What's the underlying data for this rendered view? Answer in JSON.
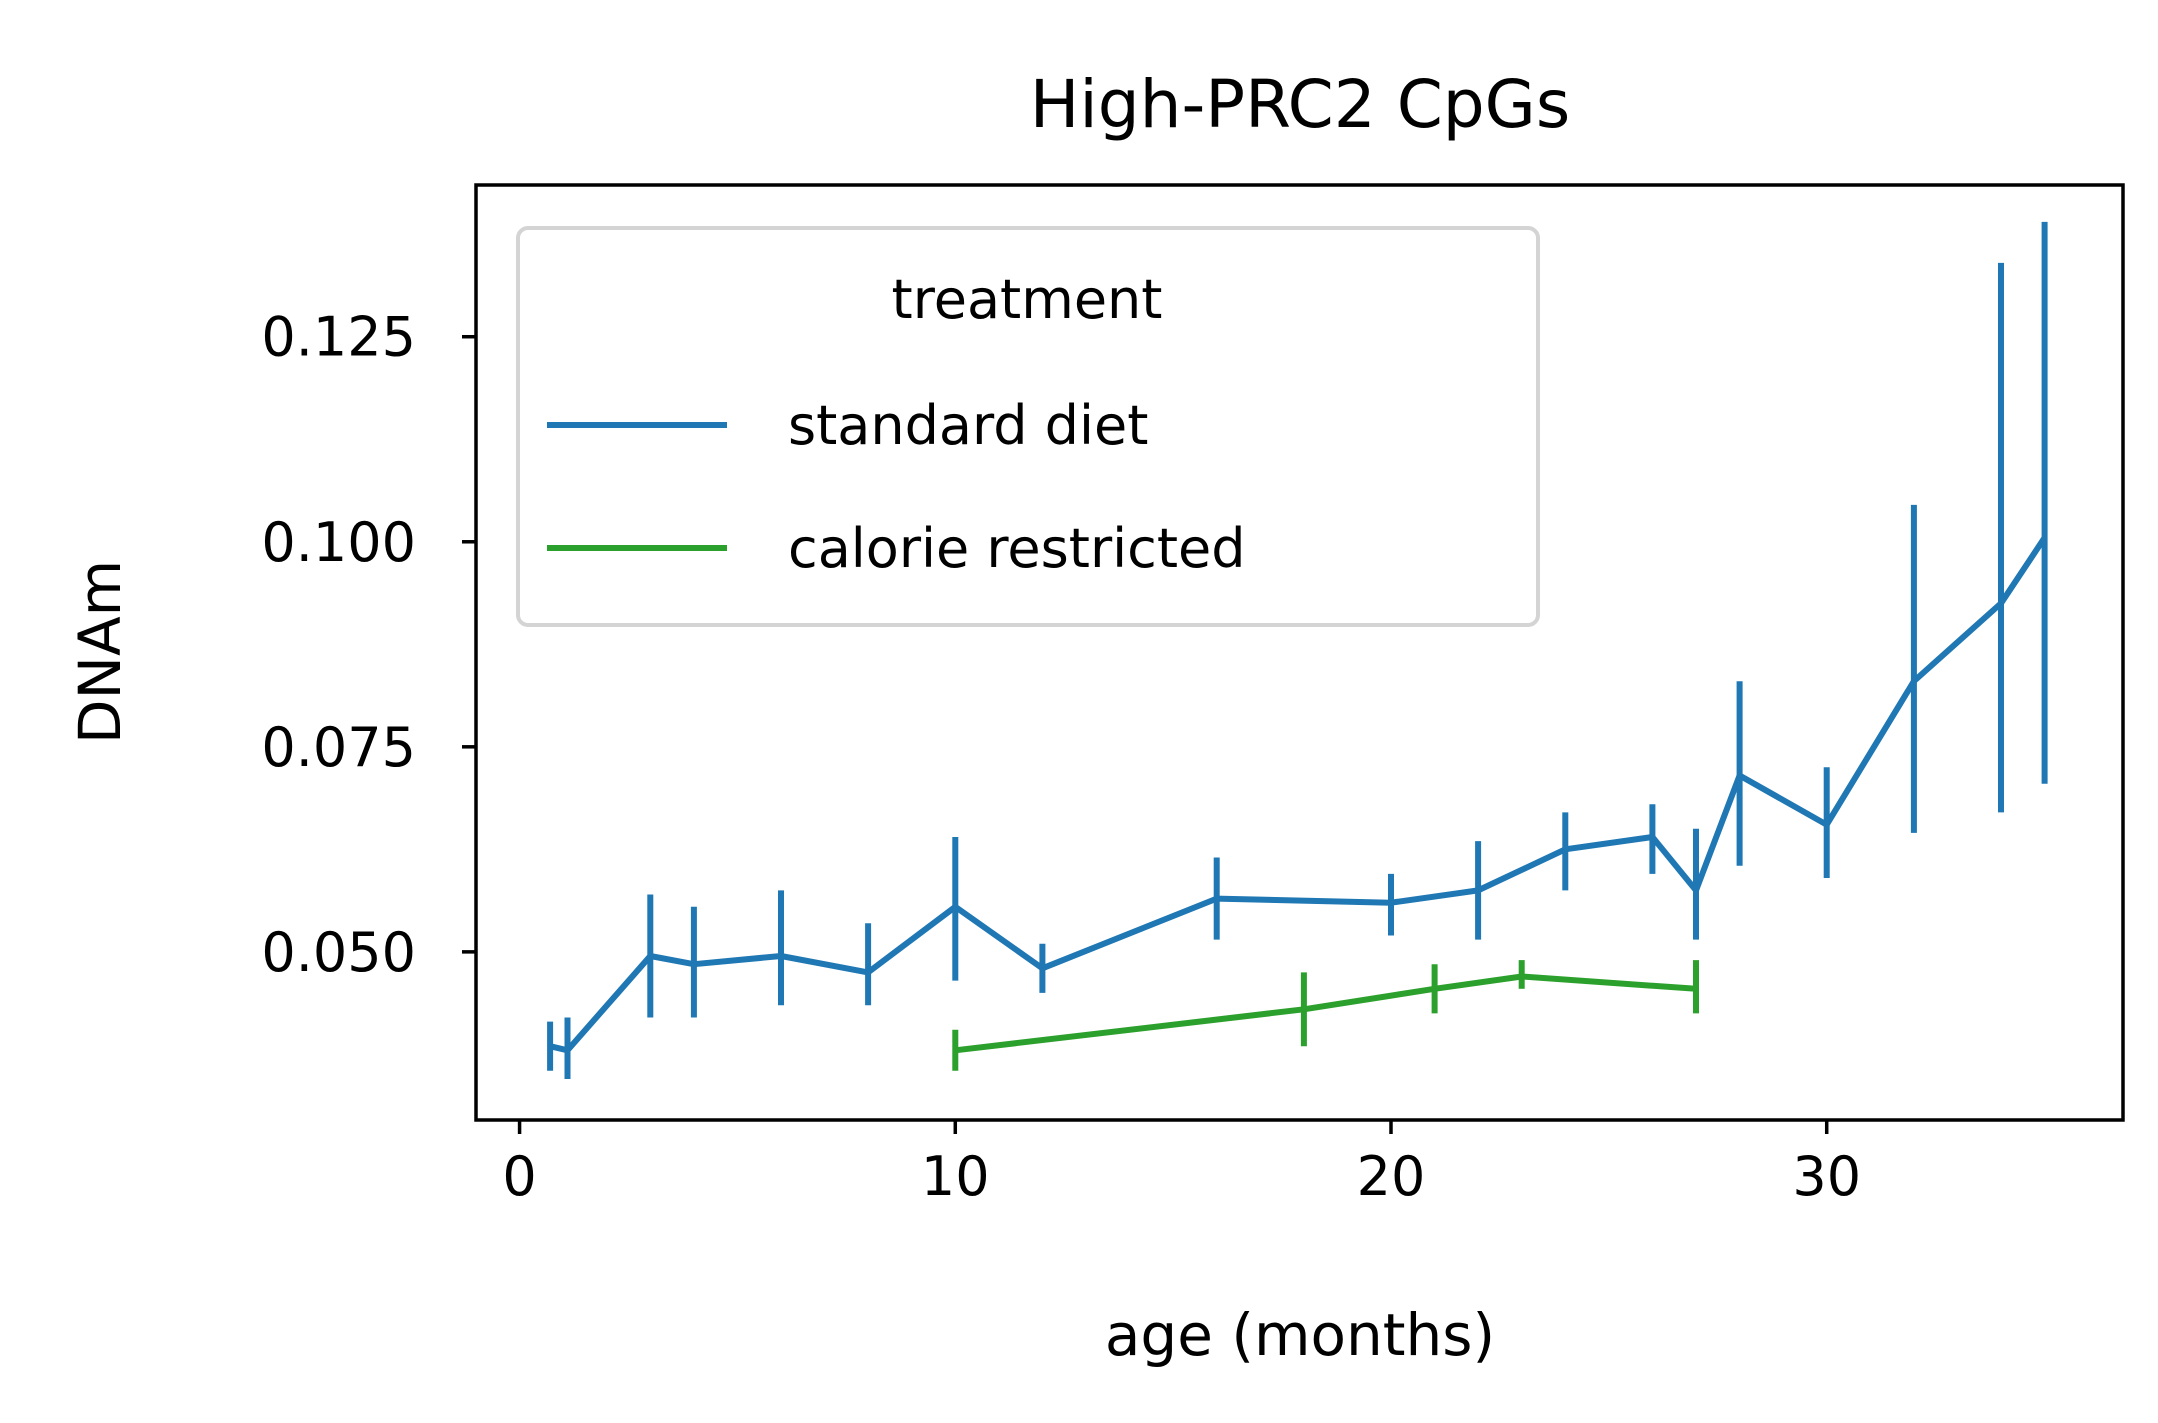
{
  "chart_data": {
    "type": "line",
    "title": "High-PRC2 CpGs",
    "xlabel": "age (months)",
    "ylabel": "DNAm",
    "xlim": [
      -1.0,
      36.8
    ],
    "ylim": [
      0.0295,
      0.1435
    ],
    "xticks": [
      0,
      10,
      20,
      30
    ],
    "xtick_labels": [
      "0",
      "10",
      "20",
      "30"
    ],
    "yticks": [
      0.05,
      0.075,
      0.1,
      0.125
    ],
    "ytick_labels": [
      "0.050",
      "0.075",
      "0.100",
      "0.125"
    ],
    "grid": false,
    "legend": {
      "title": "treatment",
      "placement": "upper-left",
      "entries": [
        "standard diet",
        "calorie restricted"
      ]
    },
    "series": [
      {
        "name": "standard diet",
        "color": "#1f77b4",
        "points": [
          {
            "x": 0.7,
            "y": 0.0385,
            "lo": 0.0355,
            "hi": 0.0415
          },
          {
            "x": 1.1,
            "y": 0.038,
            "lo": 0.0345,
            "hi": 0.042
          },
          {
            "x": 3,
            "y": 0.0495,
            "lo": 0.042,
            "hi": 0.057
          },
          {
            "x": 4,
            "y": 0.0485,
            "lo": 0.042,
            "hi": 0.0555
          },
          {
            "x": 6,
            "y": 0.0495,
            "lo": 0.0435,
            "hi": 0.0575
          },
          {
            "x": 8,
            "y": 0.0475,
            "lo": 0.0435,
            "hi": 0.0535
          },
          {
            "x": 10,
            "y": 0.0555,
            "lo": 0.0465,
            "hi": 0.064
          },
          {
            "x": 12,
            "y": 0.048,
            "lo": 0.045,
            "hi": 0.051
          },
          {
            "x": 16,
            "y": 0.0565,
            "lo": 0.0515,
            "hi": 0.0615
          },
          {
            "x": 20,
            "y": 0.056,
            "lo": 0.052,
            "hi": 0.0595
          },
          {
            "x": 22,
            "y": 0.0575,
            "lo": 0.0515,
            "hi": 0.0635
          },
          {
            "x": 24,
            "y": 0.0625,
            "lo": 0.0575,
            "hi": 0.067
          },
          {
            "x": 26,
            "y": 0.064,
            "lo": 0.0595,
            "hi": 0.068
          },
          {
            "x": 27,
            "y": 0.0575,
            "lo": 0.0515,
            "hi": 0.065
          },
          {
            "x": 28,
            "y": 0.0715,
            "lo": 0.0605,
            "hi": 0.083
          },
          {
            "x": 30,
            "y": 0.0655,
            "lo": 0.059,
            "hi": 0.0725
          },
          {
            "x": 32,
            "y": 0.083,
            "lo": 0.0645,
            "hi": 0.1045
          },
          {
            "x": 34,
            "y": 0.0925,
            "lo": 0.067,
            "hi": 0.134
          },
          {
            "x": 35,
            "y": 0.1005,
            "lo": 0.0705,
            "hi": 0.139
          }
        ]
      },
      {
        "name": "calorie restricted",
        "color": "#2ca02c",
        "points": [
          {
            "x": 10,
            "y": 0.038,
            "lo": 0.0355,
            "hi": 0.0405
          },
          {
            "x": 18,
            "y": 0.043,
            "lo": 0.0385,
            "hi": 0.0475
          },
          {
            "x": 21,
            "y": 0.0455,
            "lo": 0.0425,
            "hi": 0.0485
          },
          {
            "x": 23,
            "y": 0.047,
            "lo": 0.0455,
            "hi": 0.049
          },
          {
            "x": 27,
            "y": 0.0455,
            "lo": 0.0425,
            "hi": 0.049
          }
        ]
      }
    ]
  }
}
